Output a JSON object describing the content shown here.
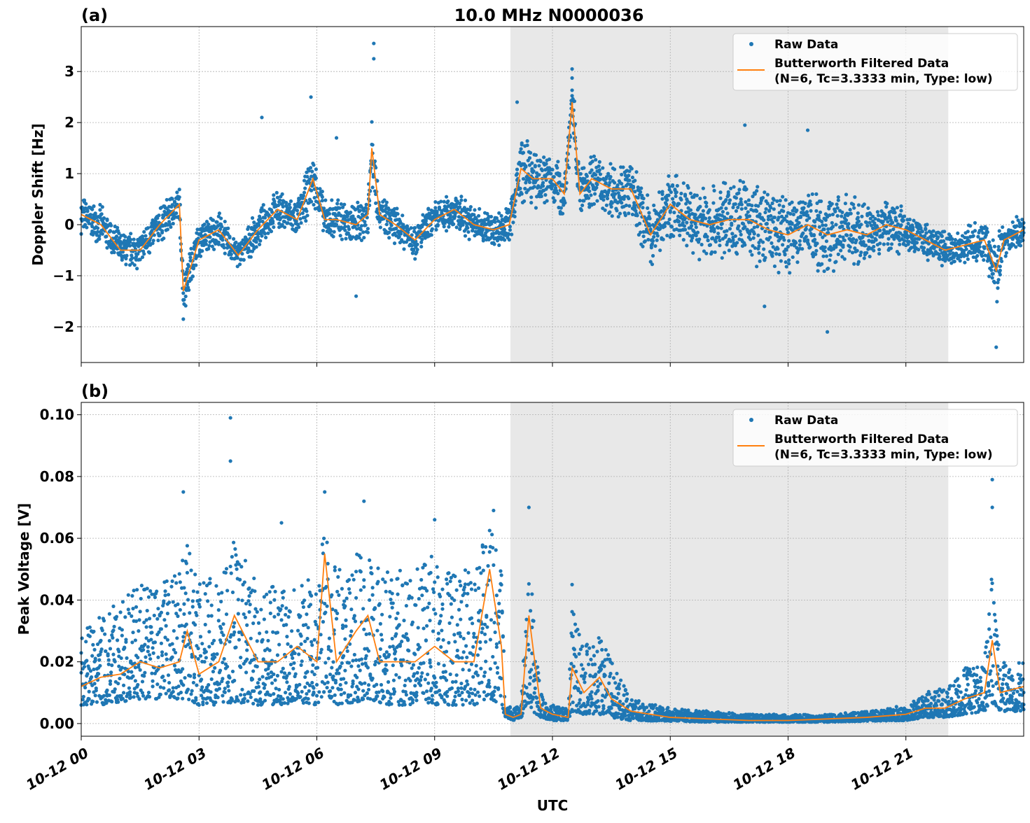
{
  "title": "10.0 MHz N0000036",
  "xlabel": "UTC",
  "x_ticks": [
    "10-12 00",
    "10-12 03",
    "10-12 06",
    "10-12 09",
    "10-12 12",
    "10-12 15",
    "10-12 18",
    "10-12 21"
  ],
  "x_tick_hours": [
    0,
    3,
    6,
    9,
    12,
    15,
    18,
    21
  ],
  "xlim_hours": [
    0,
    24
  ],
  "shaded_span_hours": [
    10.93,
    22.08
  ],
  "colors": {
    "raw": "#1f77b4",
    "filtered": "#ff7f0e",
    "shade": "#e8e8e8",
    "grid": "#b0b0b0"
  },
  "legend": {
    "raw": "Raw Data",
    "filtered_line1": "Butterworth Filtered Data",
    "filtered_line2": "(N=6, Tc=3.3333 min, Type: low)",
    "placement": "top-right"
  },
  "chart_data": [
    {
      "type": "scatter+line",
      "panel_label": "(a)",
      "ylabel": "Doppler Shift [Hz]",
      "ylim": [
        -2.7,
        3.88
      ],
      "y_ticks": [
        -2,
        -1,
        0,
        1,
        2,
        3
      ],
      "y_tick_labels": [
        "−2",
        "−1",
        "0",
        "1",
        "2",
        "3"
      ],
      "grid": true,
      "filtered": {
        "x": [
          0,
          0.5,
          1,
          1.5,
          2,
          2.5,
          2.6,
          3,
          3.5,
          4,
          4.5,
          5,
          5.5,
          5.9,
          6.2,
          6.5,
          7,
          7.3,
          7.4,
          7.6,
          8,
          8.5,
          9,
          9.5,
          10,
          10.5,
          10.9,
          11.2,
          11.5,
          12,
          12.3,
          12.5,
          12.7,
          13,
          13.5,
          14,
          14.5,
          15,
          15.5,
          16,
          16.5,
          17,
          17.5,
          18,
          18.5,
          19,
          19.5,
          20,
          20.5,
          21,
          21.5,
          22,
          22.5,
          23,
          23.3,
          23.5,
          24
        ],
        "y": [
          0.2,
          0.0,
          -0.5,
          -0.5,
          0.0,
          0.4,
          -1.3,
          -0.3,
          -0.1,
          -0.6,
          -0.1,
          0.3,
          0.1,
          0.9,
          0.1,
          0.1,
          0.0,
          0.2,
          1.5,
          0.2,
          0.0,
          -0.3,
          0.1,
          0.3,
          0.0,
          -0.1,
          0.0,
          1.1,
          0.9,
          0.9,
          0.6,
          2.4,
          0.6,
          0.9,
          0.7,
          0.7,
          -0.2,
          0.4,
          0.1,
          0.0,
          0.1,
          0.1,
          -0.1,
          -0.2,
          0.0,
          -0.2,
          -0.1,
          -0.2,
          0.0,
          -0.1,
          -0.3,
          -0.5,
          -0.4,
          -0.3,
          -0.9,
          -0.3,
          -0.1
        ]
      },
      "raw_spread": [
        0.4,
        0.4,
        0.4,
        0.4,
        0.4,
        0.4,
        0.5,
        0.4,
        0.4,
        0.3,
        0.4,
        0.4,
        0.4,
        0.6,
        0.4,
        0.5,
        0.5,
        0.5,
        0.8,
        0.4,
        0.4,
        0.4,
        0.4,
        0.4,
        0.4,
        0.4,
        0.4,
        0.8,
        0.6,
        0.6,
        0.6,
        0.6,
        0.6,
        0.6,
        0.6,
        0.6,
        0.7,
        0.7,
        0.8,
        0.9,
        0.9,
        0.9,
        0.9,
        0.9,
        0.9,
        0.9,
        0.8,
        0.7,
        0.6,
        0.5,
        0.4,
        0.4,
        0.4,
        0.4,
        0.8,
        0.4,
        0.3
      ],
      "raw_spikes": [
        [
          7.45,
          3.55
        ],
        [
          7.45,
          3.25
        ],
        [
          5.85,
          2.5
        ],
        [
          4.6,
          2.1
        ],
        [
          6.5,
          1.7
        ],
        [
          12.5,
          3.05
        ],
        [
          11.1,
          2.4
        ],
        [
          16.9,
          1.95
        ],
        [
          18.5,
          1.85
        ],
        [
          2.6,
          -1.85
        ],
        [
          23.3,
          -2.4
        ],
        [
          19.0,
          -2.1
        ],
        [
          7.0,
          -1.4
        ],
        [
          17.4,
          -1.6
        ]
      ]
    },
    {
      "type": "scatter+line",
      "panel_label": "(b)",
      "ylabel": "Peak Voltage [V]",
      "ylim": [
        -0.0041,
        0.104
      ],
      "y_ticks": [
        0,
        0.02,
        0.04,
        0.06,
        0.08,
        0.1
      ],
      "y_tick_labels": [
        "0.00",
        "0.02",
        "0.04",
        "0.06",
        "0.08",
        "0.10"
      ],
      "grid": true,
      "filtered": {
        "x": [
          0,
          0.5,
          1,
          1.5,
          2,
          2.5,
          2.7,
          3,
          3.5,
          3.9,
          4.5,
          5,
          5.5,
          6,
          6.2,
          6.5,
          7,
          7.3,
          7.6,
          8,
          8.5,
          9,
          9.5,
          10,
          10.4,
          10.7,
          10.8,
          11,
          11.2,
          11.4,
          11.7,
          12,
          12.4,
          12.5,
          12.8,
          13.2,
          13.5,
          14,
          15,
          16,
          17,
          18,
          19,
          20,
          21,
          21.5,
          22,
          22.5,
          23,
          23.2,
          23.4,
          24
        ],
        "y": [
          0.012,
          0.015,
          0.016,
          0.02,
          0.018,
          0.02,
          0.03,
          0.016,
          0.02,
          0.035,
          0.02,
          0.02,
          0.025,
          0.02,
          0.055,
          0.02,
          0.03,
          0.035,
          0.02,
          0.02,
          0.02,
          0.025,
          0.02,
          0.02,
          0.05,
          0.025,
          0.003,
          0.002,
          0.003,
          0.035,
          0.005,
          0.003,
          0.002,
          0.018,
          0.01,
          0.015,
          0.008,
          0.004,
          0.002,
          0.0015,
          0.001,
          0.001,
          0.0015,
          0.002,
          0.003,
          0.005,
          0.005,
          0.008,
          0.01,
          0.027,
          0.01,
          0.012
        ]
      },
      "raw_upper": [
        0.03,
        0.035,
        0.04,
        0.045,
        0.045,
        0.05,
        0.06,
        0.045,
        0.05,
        0.06,
        0.045,
        0.045,
        0.05,
        0.045,
        0.065,
        0.05,
        0.055,
        0.06,
        0.05,
        0.05,
        0.05,
        0.055,
        0.05,
        0.05,
        0.065,
        0.05,
        0.006,
        0.005,
        0.006,
        0.055,
        0.01,
        0.006,
        0.005,
        0.04,
        0.025,
        0.03,
        0.02,
        0.008,
        0.005,
        0.004,
        0.003,
        0.003,
        0.003,
        0.004,
        0.006,
        0.01,
        0.012,
        0.018,
        0.02,
        0.05,
        0.02,
        0.02
      ],
      "raw_lower": [
        0.006,
        0.006,
        0.007,
        0.008,
        0.008,
        0.008,
        0.008,
        0.006,
        0.006,
        0.007,
        0.006,
        0.006,
        0.007,
        0.006,
        0.01,
        0.006,
        0.007,
        0.008,
        0.006,
        0.006,
        0.006,
        0.006,
        0.006,
        0.006,
        0.008,
        0.006,
        0.002,
        0.001,
        0.002,
        0.005,
        0.002,
        0.001,
        0.001,
        0.004,
        0.003,
        0.003,
        0.002,
        0.001,
        0.0008,
        0.0005,
        0.0005,
        0.0005,
        0.0005,
        0.0008,
        0.001,
        0.002,
        0.002,
        0.003,
        0.004,
        0.006,
        0.004,
        0.004
      ],
      "raw_spikes": [
        [
          3.8,
          0.099
        ],
        [
          3.8,
          0.085
        ],
        [
          2.6,
          0.075
        ],
        [
          6.2,
          0.075
        ],
        [
          7.2,
          0.072
        ],
        [
          10.5,
          0.069
        ],
        [
          11.4,
          0.07
        ],
        [
          23.2,
          0.079
        ],
        [
          23.2,
          0.07
        ],
        [
          9.0,
          0.066
        ],
        [
          5.1,
          0.065
        ],
        [
          12.5,
          0.045
        ]
      ]
    }
  ]
}
